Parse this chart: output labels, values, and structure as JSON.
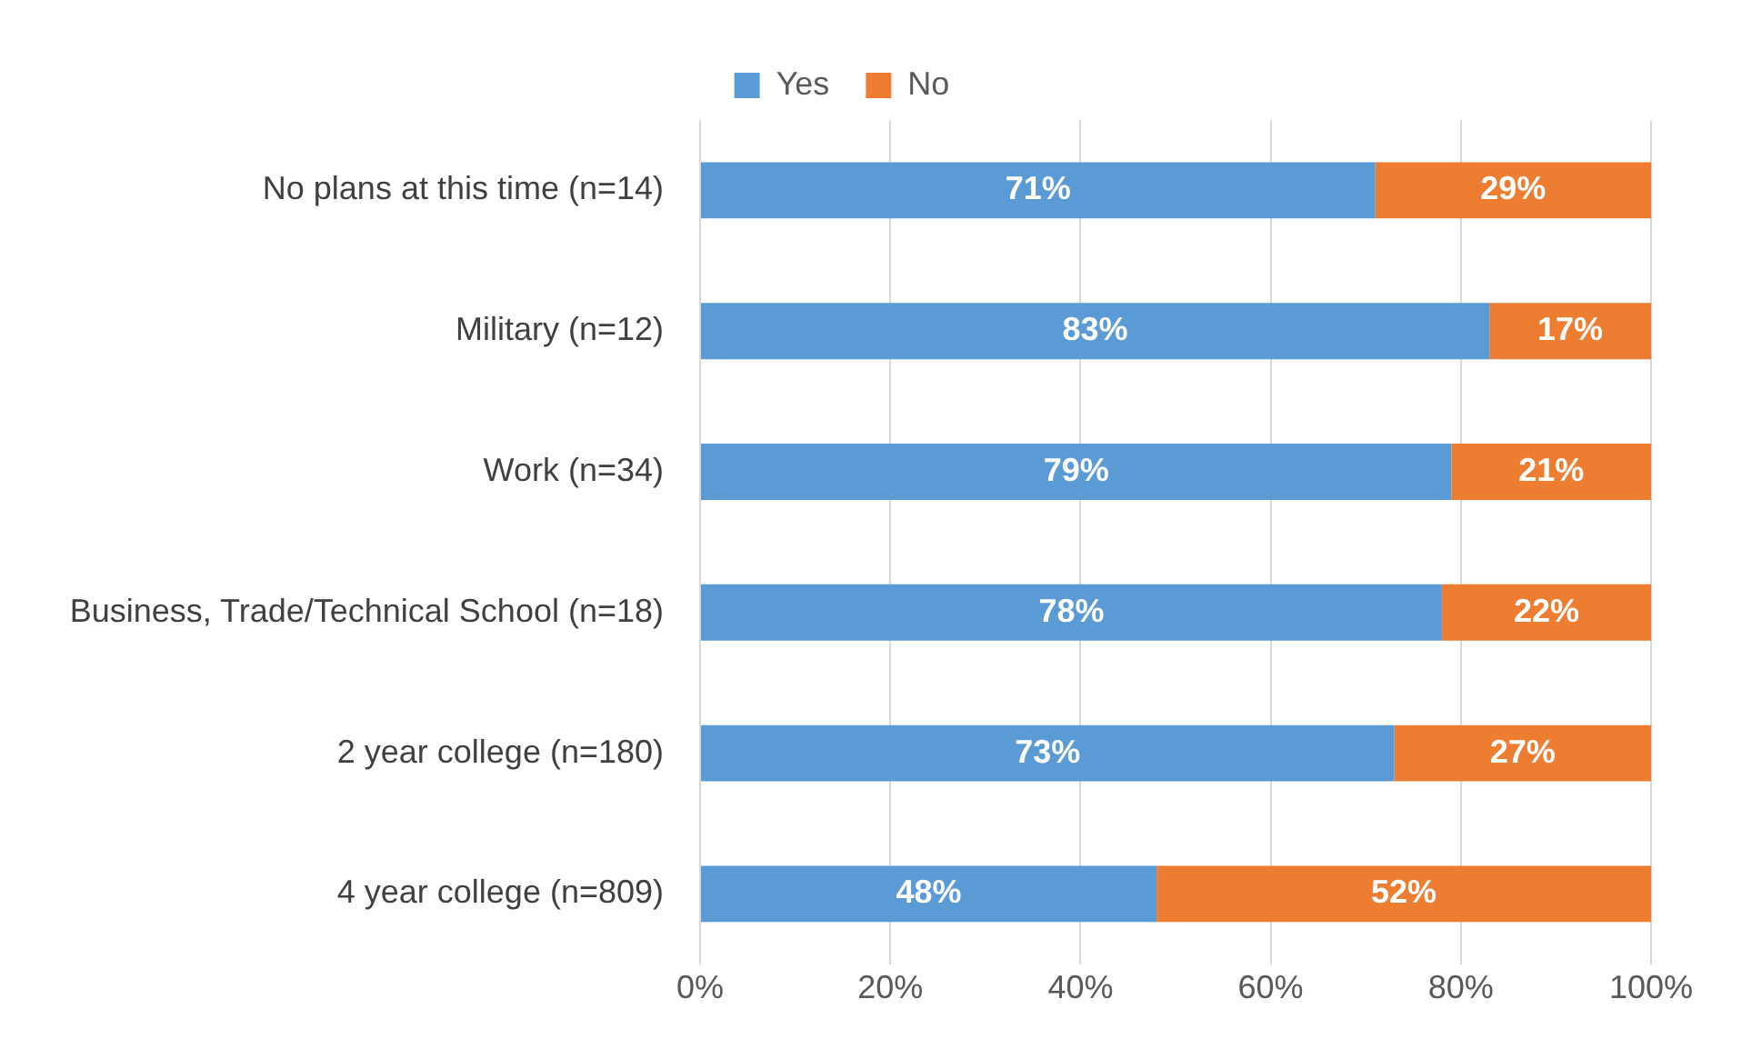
{
  "chart_data": {
    "type": "bar",
    "orientation": "horizontal",
    "stacked": true,
    "categories": [
      "No plans at this time (n=14)",
      "Military (n=12)",
      "Work (n=34)",
      "Business, Trade/Technical School (n=18)",
      "2 year college (n=180)",
      "4 year college (n=809)"
    ],
    "series": [
      {
        "name": "Yes",
        "color": "#5b9bd5",
        "values": [
          71,
          83,
          79,
          78,
          73,
          48
        ],
        "value_labels": [
          "71%",
          "83%",
          "79%",
          "78%",
          "73%",
          "48%"
        ]
      },
      {
        "name": "No",
        "color": "#ed7d31",
        "values": [
          29,
          17,
          21,
          22,
          27,
          52
        ],
        "value_labels": [
          "29%",
          "17%",
          "21%",
          "22%",
          "27%",
          "52%"
        ]
      }
    ],
    "xlim": [
      0,
      100
    ],
    "xticks": [
      {
        "value": 0,
        "label": "0%"
      },
      {
        "value": 20,
        "label": "20%"
      },
      {
        "value": 40,
        "label": "40%"
      },
      {
        "value": 60,
        "label": "60%"
      },
      {
        "value": 80,
        "label": "80%"
      },
      {
        "value": 100,
        "label": "100%"
      }
    ],
    "grid": "x",
    "legend": "top"
  }
}
